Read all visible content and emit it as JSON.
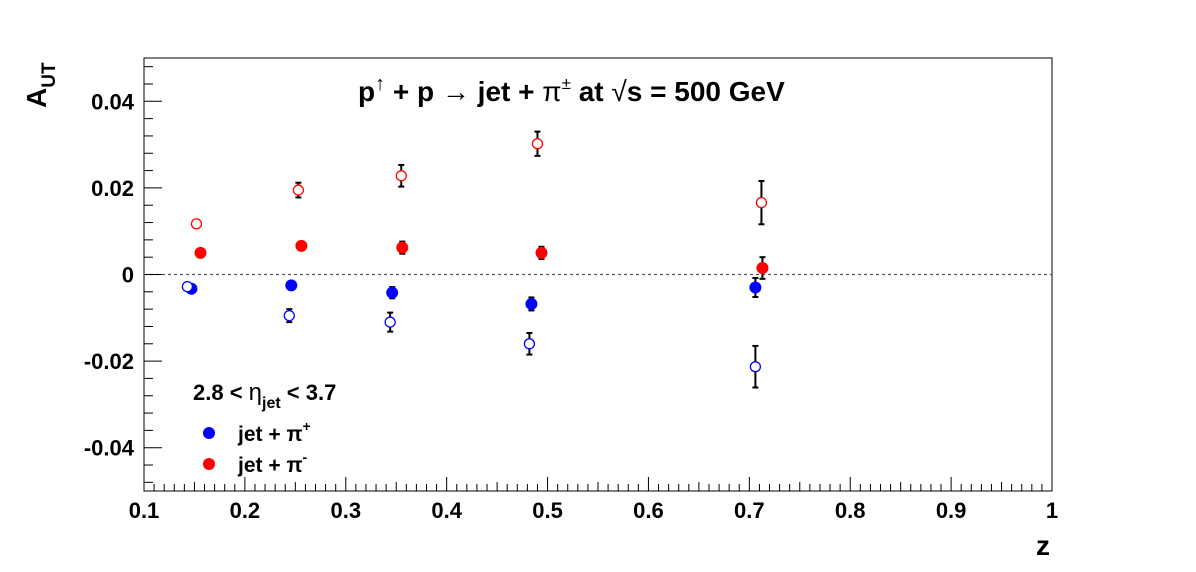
{
  "chart_data": {
    "type": "scatter",
    "title": {
      "p": "p",
      "arrow": "↑",
      "plus_p": " + p ",
      "to": "→",
      "jet": " jet + ",
      "pi": "π",
      "pm": "±",
      "at": " at ",
      "sqrt": "√",
      "s": "s",
      "energy": " = 500 GeV"
    },
    "xlabel": "z",
    "ylabel_main": "A",
    "ylabel_sub": "UT",
    "xlim": [
      0.1,
      1.0
    ],
    "ylim": [
      -0.05,
      0.05
    ],
    "xticks": [
      0.1,
      0.2,
      0.3,
      0.4,
      0.5,
      0.6,
      0.7,
      0.8,
      0.9,
      1.0
    ],
    "xtick_labels": [
      "0.1",
      "0.2",
      "0.3",
      "0.4",
      "0.5",
      "0.6",
      "0.7",
      "0.8",
      "0.9",
      "1"
    ],
    "yticks": [
      -0.04,
      -0.02,
      0,
      0.02,
      0.04
    ],
    "ytick_labels": [
      "-0.04",
      "-0.02",
      "0",
      "0.02",
      "0.04"
    ],
    "reference_line_y": 0,
    "annotation": {
      "prefix": "2.8 < ",
      "eta": "η",
      "sub": "jet",
      "suffix": " < 3.7"
    },
    "legend": [
      {
        "text": "jet + π",
        "sup": "+",
        "color": "#0000ff"
      },
      {
        "text": "jet + π",
        "sup": "-",
        "color": "#ff0000"
      }
    ],
    "series": [
      {
        "name": "jet + π+",
        "color": "#0000ff",
        "marker": "filled-circle",
        "points": [
          {
            "x": 0.147,
            "y": -0.0033,
            "err": 0.0008
          },
          {
            "x": 0.246,
            "y": -0.0025,
            "err": 0.0008
          },
          {
            "x": 0.346,
            "y": -0.0042,
            "err": 0.0013
          },
          {
            "x": 0.484,
            "y": -0.0068,
            "err": 0.0015
          },
          {
            "x": 0.706,
            "y": -0.003,
            "err": 0.0022
          }
        ]
      },
      {
        "name": "jet + π-",
        "color": "#ff0000",
        "marker": "filled-circle",
        "points": [
          {
            "x": 0.156,
            "y": 0.005,
            "err": 0.0008
          },
          {
            "x": 0.256,
            "y": 0.0066,
            "err": 0.0008
          },
          {
            "x": 0.356,
            "y": 0.0062,
            "err": 0.0014
          },
          {
            "x": 0.494,
            "y": 0.005,
            "err": 0.0014
          },
          {
            "x": 0.713,
            "y": 0.0015,
            "err": 0.0025
          }
        ]
      },
      {
        "name": "jet + π+ (open)",
        "color": "#0000ff",
        "marker": "open-circle",
        "points": [
          {
            "x": 0.143,
            "y": -0.0028,
            "err": 0.0008
          },
          {
            "x": 0.244,
            "y": -0.0095,
            "err": 0.0015
          },
          {
            "x": 0.344,
            "y": -0.011,
            "err": 0.0022
          },
          {
            "x": 0.482,
            "y": -0.016,
            "err": 0.0025
          },
          {
            "x": 0.706,
            "y": -0.0213,
            "err": 0.0048
          }
        ]
      },
      {
        "name": "jet + π- (open)",
        "color": "#ff0000",
        "marker": "open-circle",
        "points": [
          {
            "x": 0.152,
            "y": 0.0117,
            "err": 0.0008
          },
          {
            "x": 0.253,
            "y": 0.0195,
            "err": 0.0017
          },
          {
            "x": 0.355,
            "y": 0.0228,
            "err": 0.0025
          },
          {
            "x": 0.49,
            "y": 0.0302,
            "err": 0.0028
          },
          {
            "x": 0.712,
            "y": 0.0166,
            "err": 0.005
          }
        ]
      }
    ]
  }
}
